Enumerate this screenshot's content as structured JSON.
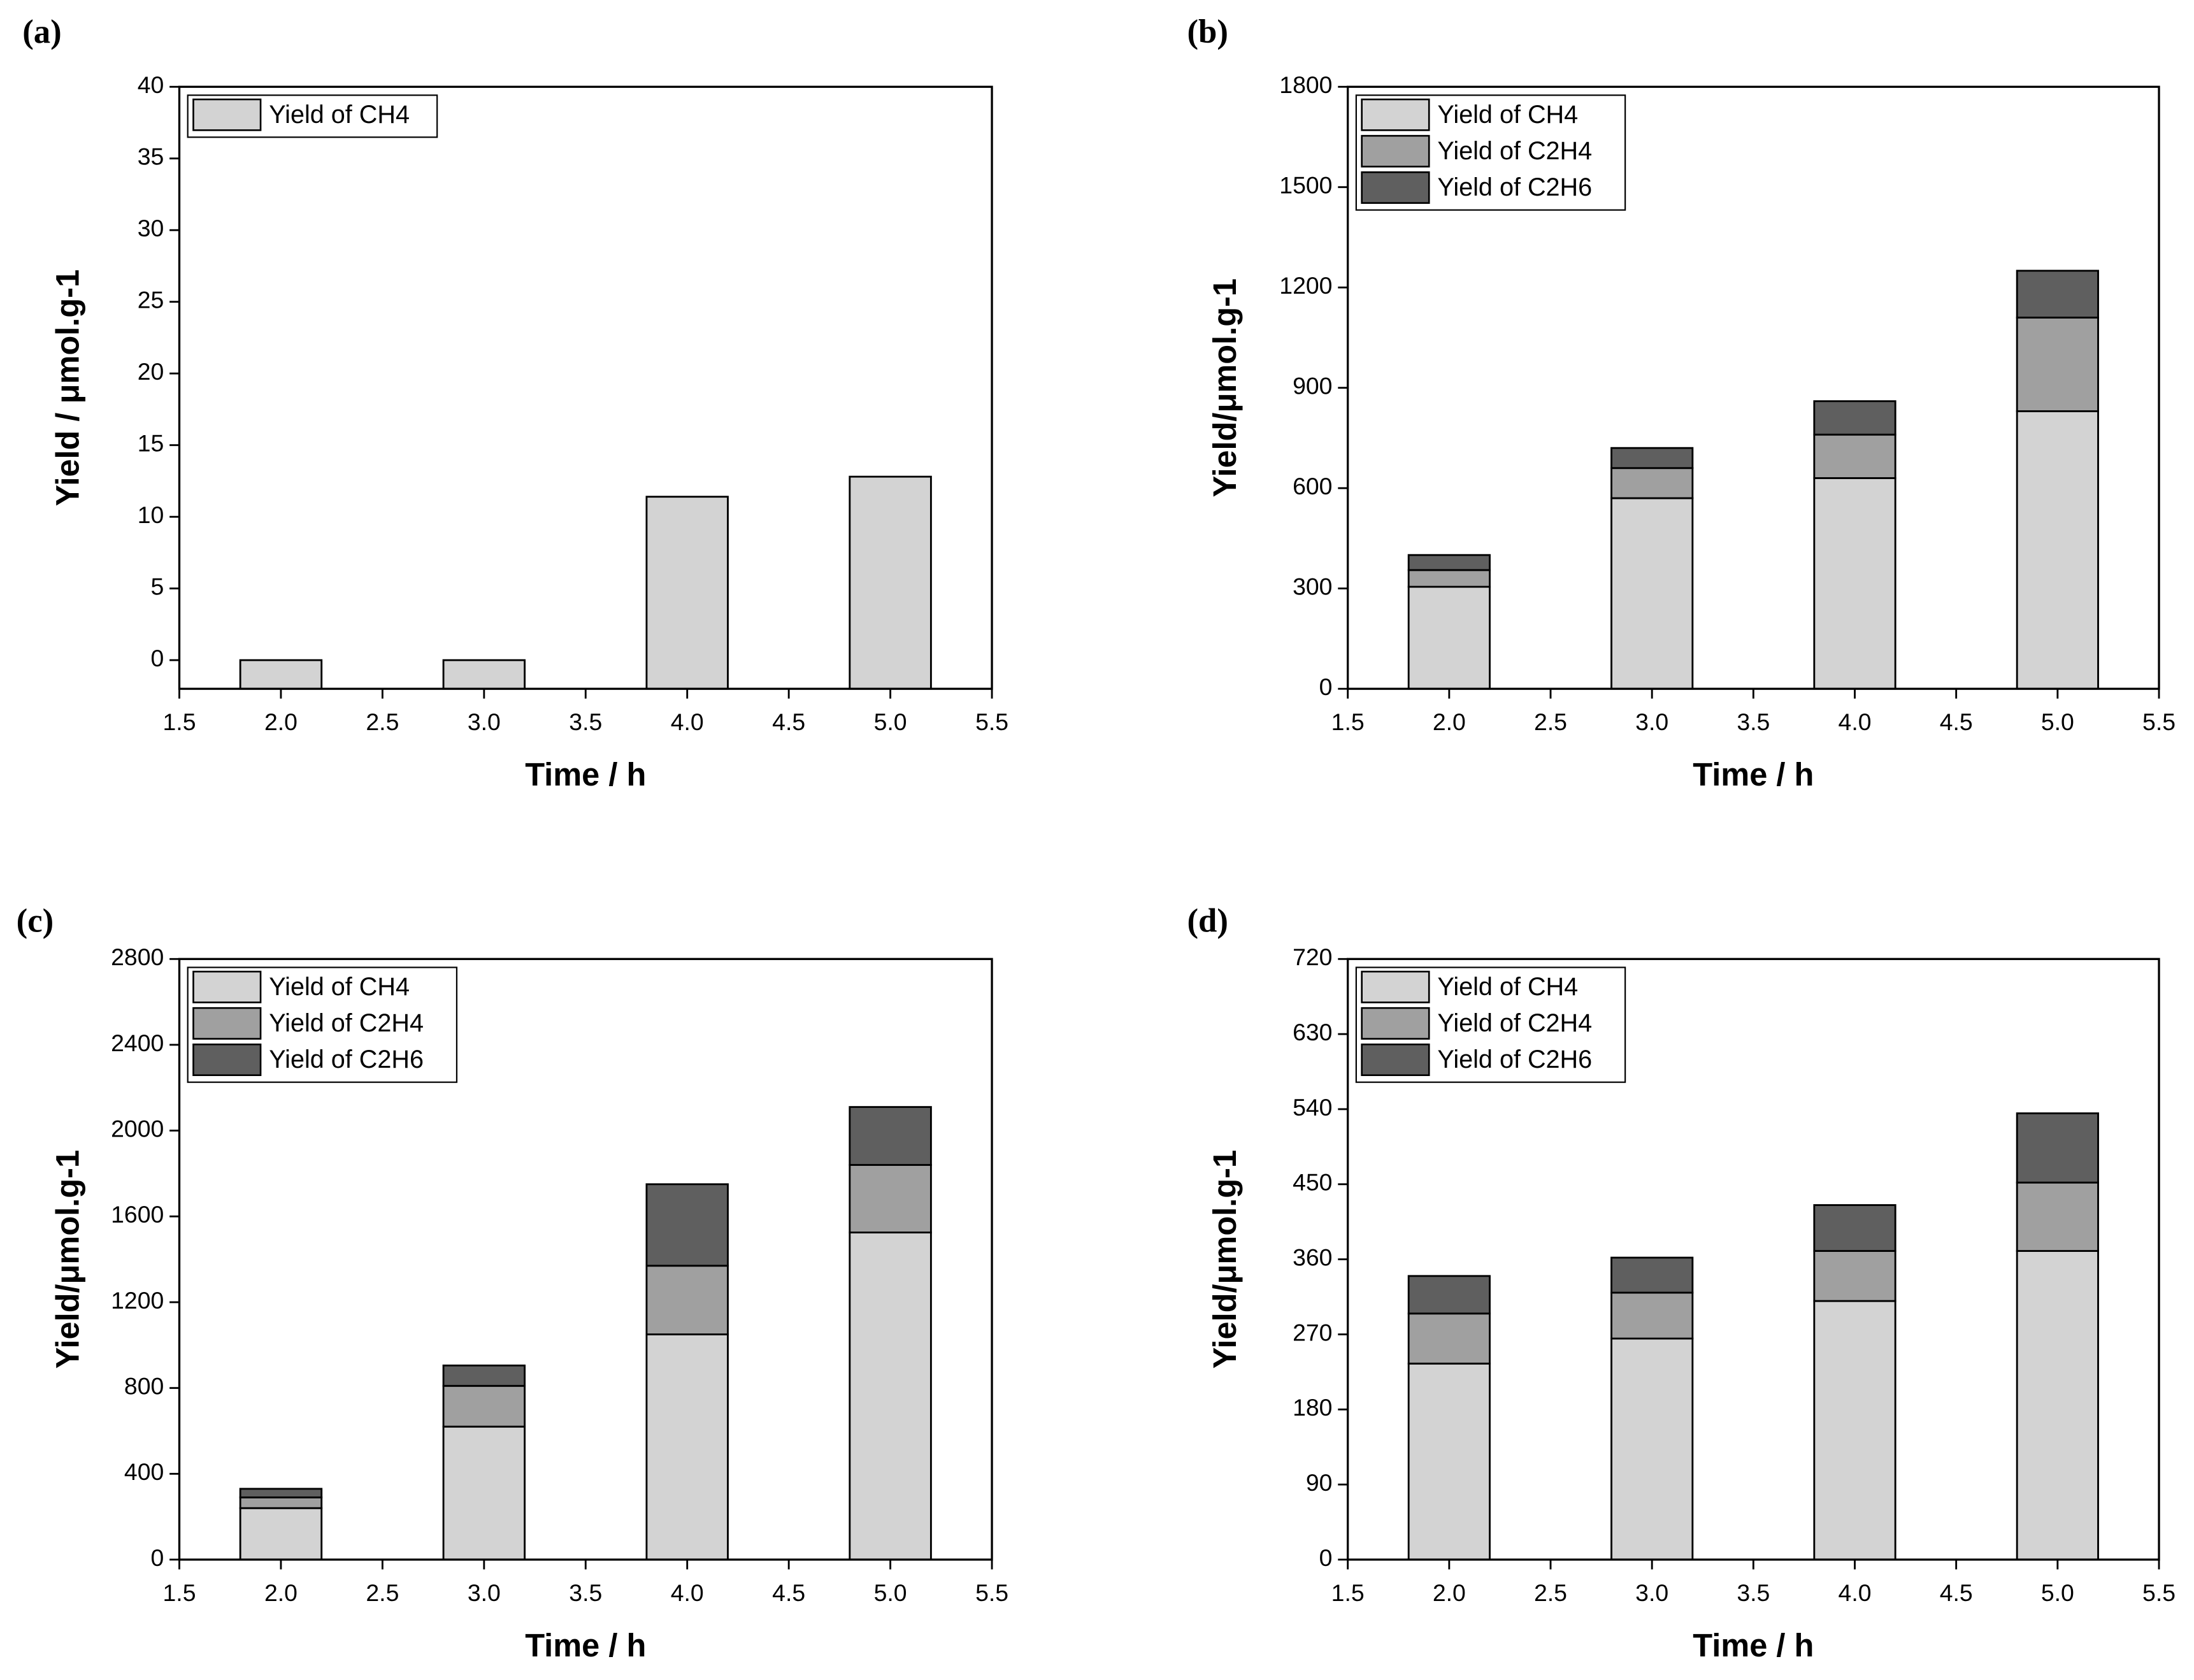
{
  "chart_data": [
    {
      "type": "bar",
      "panel": "(a)",
      "xlabel": "Time / h",
      "ylabel": "Yield / μmol.g-1",
      "x": [
        2,
        3,
        4,
        5
      ],
      "series": [
        {
          "name": "Yield of CH4",
          "color": "#d3d3d3",
          "values": [
            0,
            0,
            11.4,
            12.8
          ]
        }
      ],
      "xlim": [
        1.5,
        5.5
      ],
      "xticks": [
        1.5,
        {
          "value": 2,
          "label": "2.0"
        },
        2.5,
        {
          "value": 3,
          "label": "3.0"
        },
        3.5,
        {
          "value": 4,
          "label": "4.0"
        },
        4.5,
        {
          "value": 5,
          "label": "5.0"
        },
        5.5
      ],
      "ylim": [
        -2,
        40
      ],
      "yticks": [
        0,
        5,
        10,
        15,
        20,
        25,
        30,
        35,
        40
      ],
      "legend": "upper left"
    },
    {
      "type": "stacked-bar",
      "panel": "(b)",
      "xlabel": "Time / h",
      "ylabel": "Yield/μmol.g-1",
      "x": [
        2,
        3,
        4,
        5
      ],
      "series": [
        {
          "name": "Yield of CH4",
          "color": "#d3d3d3",
          "values": [
            305,
            570,
            630,
            830
          ]
        },
        {
          "name": "Yield of C2H4",
          "color": "#a0a0a0",
          "values": [
            50,
            90,
            130,
            280
          ]
        },
        {
          "name": "Yield of C2H6",
          "color": "#5f5f5f",
          "values": [
            45,
            60,
            100,
            140
          ]
        }
      ],
      "xlim": [
        1.5,
        5.5
      ],
      "xticks": [
        1.5,
        {
          "value": 2,
          "label": "2.0"
        },
        2.5,
        {
          "value": 3,
          "label": "3.0"
        },
        3.5,
        {
          "value": 4,
          "label": "4.0"
        },
        4.5,
        {
          "value": 5,
          "label": "5.0"
        },
        5.5
      ],
      "ylim": [
        0,
        1800
      ],
      "yticks": [
        0,
        300,
        600,
        900,
        1200,
        1500,
        1800
      ],
      "legend": "upper left"
    },
    {
      "type": "stacked-bar",
      "panel": "(c)",
      "xlabel": "Time / h",
      "ylabel": "Yield/μmol.g-1",
      "x": [
        2,
        3,
        4,
        5
      ],
      "series": [
        {
          "name": "Yield of CH4",
          "color": "#d3d3d3",
          "values": [
            240,
            620,
            1050,
            1525
          ]
        },
        {
          "name": "Yield of C2H4",
          "color": "#a0a0a0",
          "values": [
            50,
            190,
            320,
            315
          ]
        },
        {
          "name": "Yield of C2H6",
          "color": "#5f5f5f",
          "values": [
            40,
            95,
            380,
            270
          ]
        }
      ],
      "xlim": [
        1.5,
        5.5
      ],
      "xticks": [
        1.5,
        {
          "value": 2,
          "label": "2.0"
        },
        2.5,
        {
          "value": 3,
          "label": "3.0"
        },
        3.5,
        {
          "value": 4,
          "label": "4.0"
        },
        4.5,
        {
          "value": 5,
          "label": "5.0"
        },
        5.5
      ],
      "ylim": [
        0,
        2800
      ],
      "yticks": [
        0,
        400,
        800,
        1200,
        1600,
        2000,
        2400,
        2800
      ],
      "legend": "upper left"
    },
    {
      "type": "stacked-bar",
      "panel": "(d)",
      "xlabel": "Time / h",
      "ylabel": "Yield/μmol.g-1",
      "x": [
        2,
        3,
        4,
        5
      ],
      "series": [
        {
          "name": "Yield of CH4",
          "color": "#d3d3d3",
          "values": [
            235,
            265,
            310,
            370
          ]
        },
        {
          "name": "Yield of C2H4",
          "color": "#a0a0a0",
          "values": [
            60,
            55,
            60,
            82
          ]
        },
        {
          "name": "Yield of C2H6",
          "color": "#5f5f5f",
          "values": [
            45,
            42,
            55,
            83
          ]
        }
      ],
      "xlim": [
        1.5,
        5.5
      ],
      "xticks": [
        1.5,
        {
          "value": 2,
          "label": "2.0"
        },
        2.5,
        {
          "value": 3,
          "label": "3.0"
        },
        3.5,
        {
          "value": 4,
          "label": "4.0"
        },
        4.5,
        {
          "value": 5,
          "label": "5.0"
        },
        5.5
      ],
      "ylim": [
        0,
        720
      ],
      "yticks": [
        0,
        90,
        180,
        270,
        360,
        450,
        540,
        630,
        720
      ],
      "legend": "upper left"
    }
  ]
}
